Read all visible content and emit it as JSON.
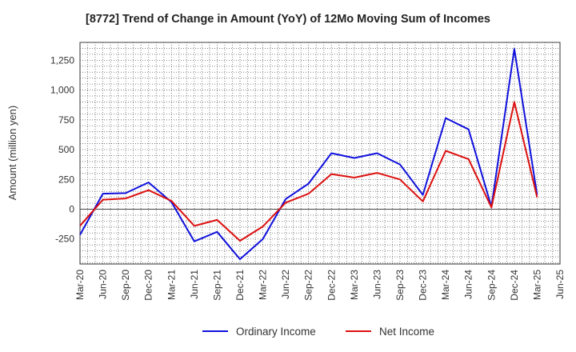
{
  "chart_data": {
    "type": "line",
    "title": "[8772]  Trend of Change in Amount (YoY) of 12Mo Moving Sum of Incomes",
    "ylabel": "Amount (million yen)",
    "xlabel": "",
    "x": [
      "Mar-20",
      "Jun-20",
      "Sep-20",
      "Dec-20",
      "Mar-21",
      "Jun-21",
      "Sep-21",
      "Dec-21",
      "Mar-22",
      "Jun-22",
      "Sep-22",
      "Dec-22",
      "Mar-23",
      "Jun-23",
      "Sep-23",
      "Dec-23",
      "Mar-24",
      "Jun-24",
      "Sep-24",
      "Dec-24",
      "Mar-25",
      "Jun-25"
    ],
    "ylim": [
      -460,
      1400
    ],
    "yticks": [
      -250,
      0,
      250,
      500,
      750,
      1000,
      1250
    ],
    "ytick_labels": [
      "-250",
      "0",
      "250",
      "500",
      "750",
      "1,000",
      "1,250"
    ],
    "grid": true,
    "legend_position": "bottom",
    "series": [
      {
        "name": "Ordinary Income",
        "color": "#1010dd",
        "values": [
          -215,
          130,
          135,
          225,
          60,
          -270,
          -190,
          -420,
          -250,
          85,
          215,
          470,
          430,
          470,
          375,
          120,
          765,
          670,
          20,
          1345,
          120,
          null
        ]
      },
      {
        "name": "Net Income",
        "color": "#dd1010",
        "values": [
          -140,
          80,
          90,
          160,
          70,
          -140,
          -90,
          -265,
          -145,
          55,
          130,
          295,
          265,
          305,
          250,
          65,
          490,
          420,
          15,
          900,
          100,
          null
        ]
      }
    ]
  }
}
